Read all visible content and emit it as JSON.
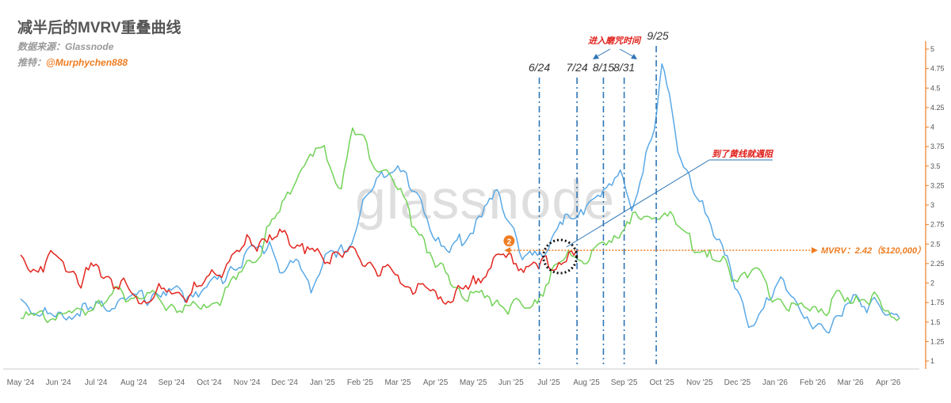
{
  "header": {
    "title": "减半后的MVRV重叠曲线",
    "source_label": "数据来源：",
    "source_value": "Glassnode",
    "twitter_label": "推特：",
    "twitter_handle": "@Murphychen888"
  },
  "watermark": "glassnode",
  "colors": {
    "blue": "#5aa9e6",
    "green": "#72d258",
    "red": "#e2261f",
    "orange": "#ef7d22",
    "vline": "#2e75b6",
    "annot_red": "#e0201b",
    "axis": "#ef7d22"
  },
  "chart_data": {
    "type": "line",
    "x_tick_labels": [
      "May '24",
      "Jun '24",
      "Jul '24",
      "Aug '24",
      "Sep '24",
      "Oct '24",
      "Nov '24",
      "Dec '24",
      "Jan '25",
      "Feb '25",
      "Mar '25",
      "Apr '25",
      "May '25",
      "Jun '25",
      "Jul '25",
      "Aug '25",
      "Sep '25",
      "Oct '25",
      "Nov '25",
      "Dec '25",
      "Jan '26",
      "Feb '26",
      "Mar '26",
      "Apr '26"
    ],
    "y_axis": {
      "position": "right",
      "ylim": [
        0.9,
        5.1
      ],
      "ticks": [
        "1",
        "1.25",
        "1.5",
        "1.75",
        "2",
        "2.25",
        "2.5",
        "2.75",
        "3",
        "3.25",
        "3.5",
        "3.75",
        "4",
        "4.25",
        "4.5",
        "4.75",
        "5"
      ]
    },
    "series": [
      {
        "color": "blue",
        "x_month": [
          0,
          0.5,
          1,
          1.5,
          2,
          2.5,
          3,
          3.5,
          4,
          4.5,
          5,
          5.5,
          6,
          6.3,
          6.6,
          7,
          7.3,
          7.7,
          8,
          8.3,
          8.7,
          9,
          9.3,
          9.7,
          10,
          10.3,
          10.7,
          11,
          11.3,
          11.7,
          12,
          12.3,
          12.7,
          13,
          13.3,
          13.7,
          14,
          14.3,
          14.7,
          15,
          15.3,
          15.6,
          15.9,
          16.2,
          16.5,
          16.8,
          17,
          17.2,
          17.5,
          17.8,
          18,
          18.3,
          18.6,
          19,
          19.3,
          19.7,
          20,
          20.3,
          20.7,
          21,
          21.3,
          21.7,
          22,
          22.3,
          22.7,
          23,
          23.3
        ],
        "y": [
          1.78,
          1.62,
          1.55,
          1.62,
          1.68,
          1.75,
          1.8,
          1.85,
          1.88,
          1.85,
          1.95,
          2.15,
          2.35,
          2.45,
          2.5,
          2.1,
          2.3,
          1.95,
          2.25,
          2.35,
          2.45,
          2.9,
          3.2,
          3.45,
          3.55,
          3.25,
          2.95,
          2.6,
          2.4,
          2.55,
          2.7,
          3.0,
          3.1,
          2.8,
          2.35,
          2.3,
          2.45,
          2.85,
          2.75,
          3.05,
          3.2,
          3.15,
          3.4,
          2.95,
          3.5,
          3.9,
          4.8,
          4.4,
          3.6,
          3.2,
          3.05,
          2.8,
          2.5,
          1.85,
          1.5,
          1.7,
          1.9,
          2.0,
          1.65,
          1.4,
          1.4,
          1.6,
          1.75,
          1.7,
          1.8,
          1.55,
          1.55
        ]
      },
      {
        "color": "green",
        "x_month": [
          0,
          0.5,
          1,
          1.5,
          2,
          2.5,
          3,
          3.5,
          4,
          4.5,
          5,
          5.5,
          6,
          6.3,
          6.6,
          7,
          7.3,
          7.6,
          7.9,
          8.2,
          8.5,
          8.8,
          9.1,
          9.4,
          9.7,
          10,
          10.3,
          10.7,
          11,
          11.4,
          11.7,
          12,
          12.3,
          12.7,
          13,
          13.3,
          13.7,
          14,
          14.3,
          14.6,
          15,
          15.3,
          15.6,
          16,
          16.3,
          16.6,
          17,
          17.3,
          17.6,
          18,
          18.4,
          18.7,
          19,
          19.4,
          19.7,
          20,
          20.3,
          20.7,
          21,
          21.3,
          21.7,
          22,
          22.3,
          22.7,
          23,
          23.3
        ],
        "y": [
          1.6,
          1.55,
          1.6,
          1.6,
          1.75,
          1.85,
          1.85,
          1.8,
          1.7,
          1.65,
          1.7,
          1.9,
          2.25,
          2.35,
          2.7,
          3.05,
          3.4,
          3.5,
          3.75,
          3.55,
          3.25,
          3.95,
          3.8,
          3.55,
          3.45,
          3.2,
          2.9,
          2.55,
          2.2,
          2.05,
          1.85,
          1.85,
          1.8,
          1.75,
          1.7,
          1.65,
          1.8,
          2.1,
          2.2,
          2.4,
          2.3,
          2.45,
          2.5,
          2.75,
          2.85,
          2.75,
          2.95,
          2.8,
          2.6,
          2.45,
          2.3,
          2.2,
          2.1,
          2.15,
          2.0,
          1.8,
          1.75,
          1.65,
          1.7,
          1.65,
          1.8,
          1.75,
          1.85,
          1.75,
          1.6,
          1.55
        ]
      },
      {
        "color": "red",
        "x_month": [
          0,
          0.4,
          0.8,
          1.2,
          1.6,
          2,
          2.4,
          2.8,
          3.2,
          3.6,
          4,
          4.4,
          4.8,
          5.2,
          5.6,
          6,
          6.4,
          6.8,
          7.2,
          7.6,
          8,
          8.4,
          8.8,
          9.2,
          9.6,
          10,
          10.4,
          10.8,
          11.2,
          11.6,
          12,
          12.4,
          12.8,
          13.2,
          13.6,
          14,
          14.4,
          14.8
        ],
        "y": [
          2.3,
          2.15,
          2.35,
          2.25,
          2.05,
          2.2,
          2.05,
          1.95,
          1.75,
          1.9,
          1.85,
          1.85,
          1.95,
          2.15,
          2.3,
          2.5,
          2.55,
          2.6,
          2.55,
          2.45,
          2.3,
          2.4,
          2.35,
          2.25,
          2.15,
          2.05,
          1.95,
          1.9,
          1.8,
          1.85,
          2.0,
          2.2,
          2.35,
          2.25,
          2.2,
          2.25,
          2.3,
          2.42
        ]
      }
    ],
    "vertical_markers": [
      {
        "label": "6/24",
        "x_month": 13.75
      },
      {
        "label": "7/24",
        "x_month": 14.75
      },
      {
        "label": "8/15",
        "x_month": 15.45
      },
      {
        "label": "8/31",
        "x_month": 16.0
      },
      {
        "label": "9/25",
        "x_month": 16.85
      }
    ],
    "horizontal_line": {
      "y": 2.42,
      "label": "MVRV：2.42（$120,000）"
    },
    "annotations": {
      "enter_zone": "进入磨咒时间",
      "resistance": "到了黄线就遇阻",
      "marker_number": "2"
    }
  }
}
